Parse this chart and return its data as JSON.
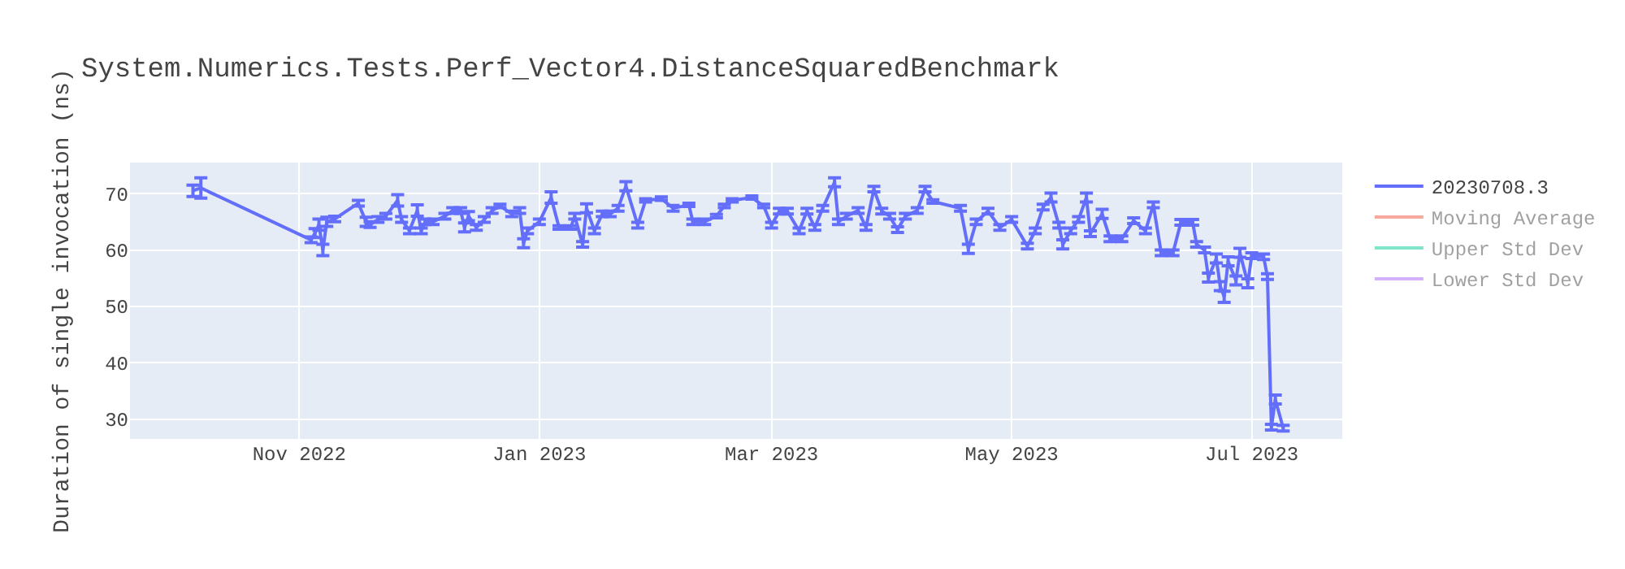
{
  "chart_data": {
    "type": "line",
    "title": "System.Numerics.Tests.Perf_Vector4.DistanceSquaredBenchmark",
    "ylabel": "Duration of single invocation (ns)",
    "x": [
      "2022-10-05",
      "2022-10-07",
      "2022-11-04",
      "2022-11-05",
      "2022-11-06",
      "2022-11-07",
      "2022-11-08",
      "2022-11-10",
      "2022-11-16",
      "2022-11-18",
      "2022-11-19",
      "2022-11-21",
      "2022-11-23",
      "2022-11-26",
      "2022-11-27",
      "2022-11-29",
      "2022-12-01",
      "2022-12-02",
      "2022-12-03",
      "2022-12-05",
      "2022-12-08",
      "2022-12-10",
      "2022-12-12",
      "2022-12-13",
      "2022-12-14",
      "2022-12-16",
      "2022-12-18",
      "2022-12-20",
      "2022-12-22",
      "2022-12-25",
      "2022-12-27",
      "2022-12-28",
      "2022-12-29",
      "2023-01-01",
      "2023-01-04",
      "2023-01-06",
      "2023-01-09",
      "2023-01-10",
      "2023-01-12",
      "2023-01-13",
      "2023-01-15",
      "2023-01-17",
      "2023-01-19",
      "2023-01-21",
      "2023-01-23",
      "2023-01-26",
      "2023-01-28",
      "2023-02-01",
      "2023-02-04",
      "2023-02-08",
      "2023-02-09",
      "2023-02-12",
      "2023-02-15",
      "2023-02-17",
      "2023-02-19",
      "2023-02-24",
      "2023-02-27",
      "2023-03-01",
      "2023-03-03",
      "2023-03-05",
      "2023-03-08",
      "2023-03-10",
      "2023-03-12",
      "2023-03-14",
      "2023-03-17",
      "2023-03-18",
      "2023-03-20",
      "2023-03-23",
      "2023-03-25",
      "2023-03-27",
      "2023-03-29",
      "2023-03-31",
      "2023-04-02",
      "2023-04-04",
      "2023-04-07",
      "2023-04-09",
      "2023-04-11",
      "2023-04-18",
      "2023-04-20",
      "2023-04-22",
      "2023-04-25",
      "2023-04-28",
      "2023-05-01",
      "2023-05-05",
      "2023-05-07",
      "2023-05-09",
      "2023-05-11",
      "2023-05-13",
      "2023-05-14",
      "2023-05-16",
      "2023-05-18",
      "2023-05-20",
      "2023-05-21",
      "2023-05-24",
      "2023-05-26",
      "2023-05-29",
      "2023-06-01",
      "2023-06-04",
      "2023-06-06",
      "2023-06-08",
      "2023-06-11",
      "2023-06-13",
      "2023-06-16",
      "2023-06-17",
      "2023-06-19",
      "2023-06-20",
      "2023-06-22",
      "2023-06-23",
      "2023-06-24",
      "2023-06-25",
      "2023-06-27",
      "2023-06-28",
      "2023-06-30",
      "2023-07-01",
      "2023-07-04",
      "2023-07-05",
      "2023-07-06",
      "2023-07-07",
      "2023-07-09"
    ],
    "series": [
      {
        "name": "20230708.3",
        "color": "#636efa",
        "values": [
          70.5,
          71,
          61.8,
          63,
          64.5,
          60,
          65,
          65.5,
          68.3,
          65,
          64.5,
          65.4,
          66,
          68.8,
          65.4,
          63.4,
          67,
          63.4,
          65,
          65,
          66,
          67,
          67,
          64,
          66,
          64,
          65.4,
          67,
          67.8,
          66.4,
          67,
          61.2,
          63.4,
          65,
          69.3,
          64,
          64,
          66,
          61,
          67.4,
          63.4,
          66.4,
          66.4,
          67.4,
          71.3,
          64.4,
          68.8,
          69.1,
          67.4,
          68,
          65,
          65,
          66,
          67.8,
          68.8,
          69.3,
          67.8,
          64.4,
          66.9,
          66.9,
          63.4,
          66.9,
          64,
          67.4,
          72,
          65,
          66,
          67,
          64,
          70.8,
          66.9,
          66,
          63.6,
          66,
          67,
          70.8,
          68.6,
          67.4,
          60.2,
          65,
          66.9,
          64,
          65.4,
          60.7,
          63.4,
          67.6,
          69.3,
          64.4,
          61,
          63.4,
          65.4,
          69.3,
          62.9,
          66.4,
          62,
          62,
          65.2,
          63.4,
          68,
          59.5,
          59.5,
          64.9,
          64.9,
          61,
          60,
          55.1,
          58.5,
          53.6,
          51.7,
          58,
          54.6,
          59.5,
          54.1,
          59,
          58.8,
          55.3,
          28.6,
          33.5,
          28.4
        ],
        "errors": [
          1,
          1.8,
          0.5,
          0.8,
          1,
          1,
          0.8,
          0.5,
          0.5,
          0.8,
          0.5,
          0.5,
          0.5,
          1,
          0.5,
          0.5,
          1,
          0.5,
          0.5,
          0.5,
          0.5,
          0.5,
          0.5,
          0.8,
          0.8,
          0.5,
          0.5,
          0.5,
          0.3,
          0.5,
          0.5,
          0.8,
          0.5,
          0.5,
          1,
          0.3,
          0.3,
          0.5,
          0.5,
          0.8,
          0.5,
          0.5,
          0.5,
          0.5,
          0.8,
          0.5,
          0.3,
          0.3,
          0.5,
          0.3,
          0.5,
          0.5,
          0.3,
          0.3,
          0.3,
          0.3,
          0.3,
          0.5,
          0.5,
          0.5,
          0.5,
          0.5,
          0.5,
          0.5,
          0.8,
          0.5,
          0.5,
          0.5,
          0.5,
          0.5,
          0.5,
          0.5,
          0.5,
          0.5,
          0.5,
          0.5,
          0.3,
          0.5,
          0.8,
          0.5,
          0.5,
          0.5,
          0.5,
          0.5,
          0.5,
          0.5,
          0.8,
          0.5,
          0.8,
          0.5,
          0.5,
          0.8,
          0.5,
          0.8,
          0.5,
          0.5,
          0.5,
          0.5,
          0.5,
          0.5,
          0.5,
          0.5,
          0.5,
          0.5,
          0.5,
          0.8,
          0.8,
          0.8,
          1,
          0.8,
          0.8,
          0.8,
          0.8,
          0.5,
          0.5,
          0.5,
          0.5,
          0.8,
          0.5
        ]
      },
      {
        "name": "Moving Average",
        "color": "#ef553b",
        "values": [
          null,
          null,
          null,
          null,
          null,
          null,
          null,
          null,
          null,
          null,
          null,
          null,
          null,
          null,
          null,
          null,
          null,
          null,
          null,
          null,
          null,
          null,
          null,
          null,
          null,
          null,
          null,
          null,
          null,
          null,
          null,
          null,
          null,
          null,
          null,
          null,
          null,
          null,
          null,
          null,
          null,
          null,
          null,
          null,
          null,
          null,
          null,
          null,
          null,
          null,
          null,
          null,
          null,
          null,
          null,
          null,
          null,
          null,
          null,
          null,
          null,
          null,
          null,
          null,
          null,
          null,
          null,
          null,
          null,
          null,
          null,
          null,
          null,
          null,
          null,
          null,
          null,
          null,
          null,
          null,
          null,
          null,
          null,
          null,
          null,
          null,
          null,
          null,
          null,
          null,
          null,
          null,
          null,
          null,
          null,
          null,
          null,
          null,
          null,
          null,
          null,
          null,
          null,
          null,
          null,
          null,
          null,
          null,
          null,
          null,
          null,
          null,
          null,
          null,
          null,
          null,
          null,
          null,
          null
        ]
      },
      {
        "name": "Upper Std Dev",
        "color": "#00cc96",
        "values": [
          null,
          null,
          null,
          null,
          null,
          null,
          null,
          null,
          null,
          null,
          null,
          null,
          null,
          null,
          null,
          null,
          null,
          null,
          null,
          null,
          null,
          null,
          null,
          null,
          null,
          null,
          null,
          null,
          null,
          null,
          null,
          null,
          null,
          null,
          null,
          null,
          null,
          null,
          null,
          null,
          null,
          null,
          null,
          null,
          null,
          null,
          null,
          null,
          null,
          null,
          null,
          null,
          null,
          null,
          null,
          null,
          null,
          null,
          null,
          null,
          null,
          null,
          null,
          null,
          null,
          null,
          null,
          null,
          null,
          null,
          null,
          null,
          null,
          null,
          null,
          null,
          null,
          null,
          null,
          null,
          null,
          null,
          null,
          null,
          null,
          null,
          null,
          null,
          null,
          null,
          null,
          null,
          null,
          null,
          null,
          null,
          null,
          null,
          null,
          null,
          null,
          null,
          null,
          null,
          null,
          null,
          null,
          null,
          null,
          null,
          null,
          null,
          null,
          null,
          null,
          null,
          null,
          null,
          null
        ]
      },
      {
        "name": "Lower Std Dev",
        "color": "#ab63fa",
        "values": [
          null,
          null,
          null,
          null,
          null,
          null,
          null,
          null,
          null,
          null,
          null,
          null,
          null,
          null,
          null,
          null,
          null,
          null,
          null,
          null,
          null,
          null,
          null,
          null,
          null,
          null,
          null,
          null,
          null,
          null,
          null,
          null,
          null,
          null,
          null,
          null,
          null,
          null,
          null,
          null,
          null,
          null,
          null,
          null,
          null,
          null,
          null,
          null,
          null,
          null,
          null,
          null,
          null,
          null,
          null,
          null,
          null,
          null,
          null,
          null,
          null,
          null,
          null,
          null,
          null,
          null,
          null,
          null,
          null,
          null,
          null,
          null,
          null,
          null,
          null,
          null,
          null,
          null,
          null,
          null,
          null,
          null,
          null,
          null,
          null,
          null,
          null,
          null,
          null,
          null,
          null,
          null,
          null,
          null,
          null,
          null,
          null,
          null,
          null,
          null,
          null,
          null,
          null,
          null,
          null,
          null,
          null,
          null,
          null,
          null,
          null,
          null,
          null,
          null,
          null,
          null,
          null,
          null,
          null
        ]
      }
    ],
    "xlim": [
      "2022-09-19",
      "2023-07-24"
    ],
    "xticks": [
      {
        "value": "2022-11-01",
        "label": "Nov 2022"
      },
      {
        "value": "2023-01-01",
        "label": "Jan 2023"
      },
      {
        "value": "2023-03-01",
        "label": "Mar 2023"
      },
      {
        "value": "2023-05-01",
        "label": "May 2023"
      },
      {
        "value": "2023-07-01",
        "label": "Jul 2023"
      }
    ],
    "ylim": [
      26.5,
      75.5
    ],
    "yticks": [
      30,
      40,
      50,
      60,
      70
    ],
    "grid": true,
    "legend": "top right",
    "marker": "none",
    "line_style": "solid"
  }
}
